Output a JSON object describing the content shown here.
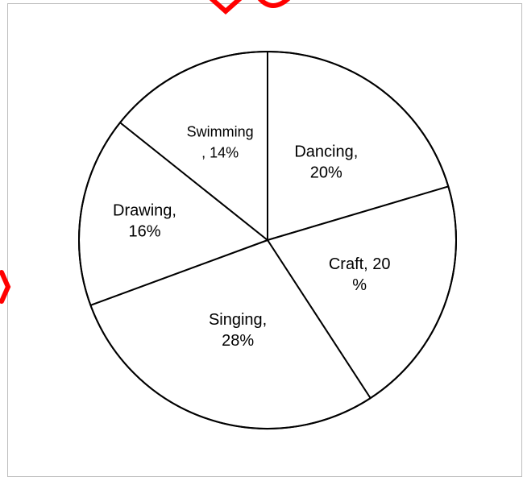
{
  "chart_data": {
    "type": "pie",
    "title": "",
    "slices": [
      {
        "label": "Dancing",
        "value": 20,
        "lines": [
          "Dancing,",
          "20%"
        ]
      },
      {
        "label": "Craft",
        "value": 20,
        "lines": [
          "Craft, 20",
          "%"
        ]
      },
      {
        "label": "Singing",
        "value": 28,
        "lines": [
          "Singing,",
          "28%"
        ]
      },
      {
        "label": "Drawing",
        "value": 16,
        "lines": [
          "Drawing,",
          "16%"
        ]
      },
      {
        "label": "Swimming",
        "value": 14,
        "lines": [
          "Swimming",
          ", 14%"
        ]
      }
    ],
    "start": "12 o'clock",
    "direction": "clockwise",
    "legend": "none",
    "colors": {
      "fill": "#ffffff",
      "stroke": "#000000",
      "watermark": "#ff0000"
    }
  }
}
